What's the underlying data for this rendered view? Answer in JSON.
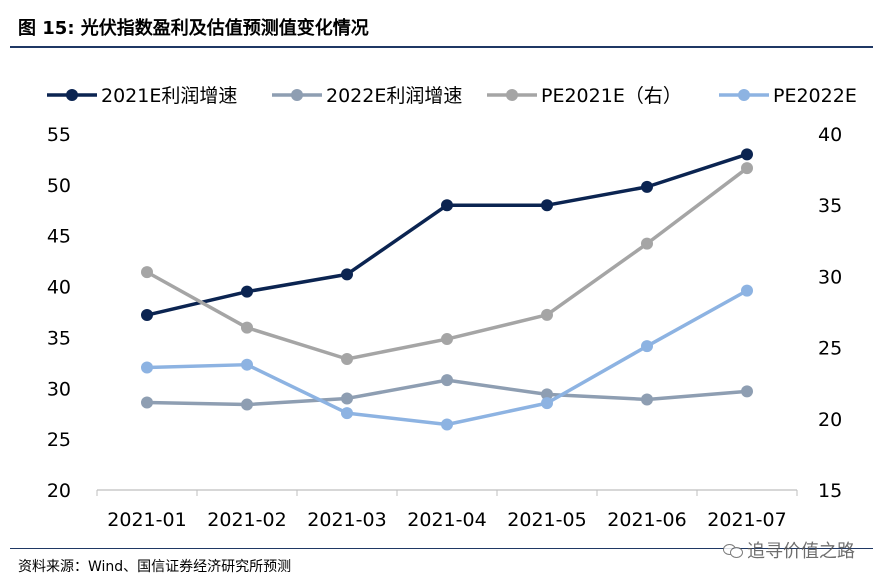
{
  "figure": {
    "title": "图  15: 光伏指数盈利及估值预测值变化情况",
    "source": "资料来源：Wind、国信证券经济研究所预测",
    "watermark": "追寻价值之路"
  },
  "colors": {
    "header_rule": "#1f3864"
  },
  "chart_data": {
    "type": "line",
    "categories": [
      "2021-01",
      "2021-02",
      "2021-03",
      "2021-04",
      "2021-05",
      "2021-06",
      "2021-07"
    ],
    "y_left": {
      "ticks": [
        "55",
        "50",
        "45",
        "40",
        "35",
        "30",
        "25",
        "20"
      ],
      "ylim": [
        20,
        55
      ]
    },
    "y_right": {
      "ticks": [
        "40",
        "35",
        "30",
        "25",
        "20",
        "15"
      ],
      "ylim": [
        15,
        40
      ]
    },
    "grid": false,
    "legend_position": "top",
    "series": [
      {
        "name": "2021E利润增速",
        "axis": "left",
        "color": "#0b2451",
        "values": [
          37.2,
          39.5,
          41.2,
          48.0,
          48.0,
          49.8,
          53.0
        ]
      },
      {
        "name": "2022E利润增速",
        "axis": "left",
        "color": "#8e9eb2",
        "values": [
          28.6,
          28.4,
          29.0,
          30.8,
          29.4,
          28.9,
          29.7
        ]
      },
      {
        "name": "PE2021E（右）",
        "axis": "right",
        "color": "#a5a5a5",
        "values": [
          30.3,
          26.4,
          24.2,
          25.6,
          27.3,
          32.3,
          37.6
        ]
      },
      {
        "name": "PE2022E",
        "axis": "right",
        "color": "#8db3e2",
        "values": [
          23.6,
          23.8,
          20.4,
          19.6,
          21.1,
          25.1,
          29.0
        ]
      }
    ]
  }
}
